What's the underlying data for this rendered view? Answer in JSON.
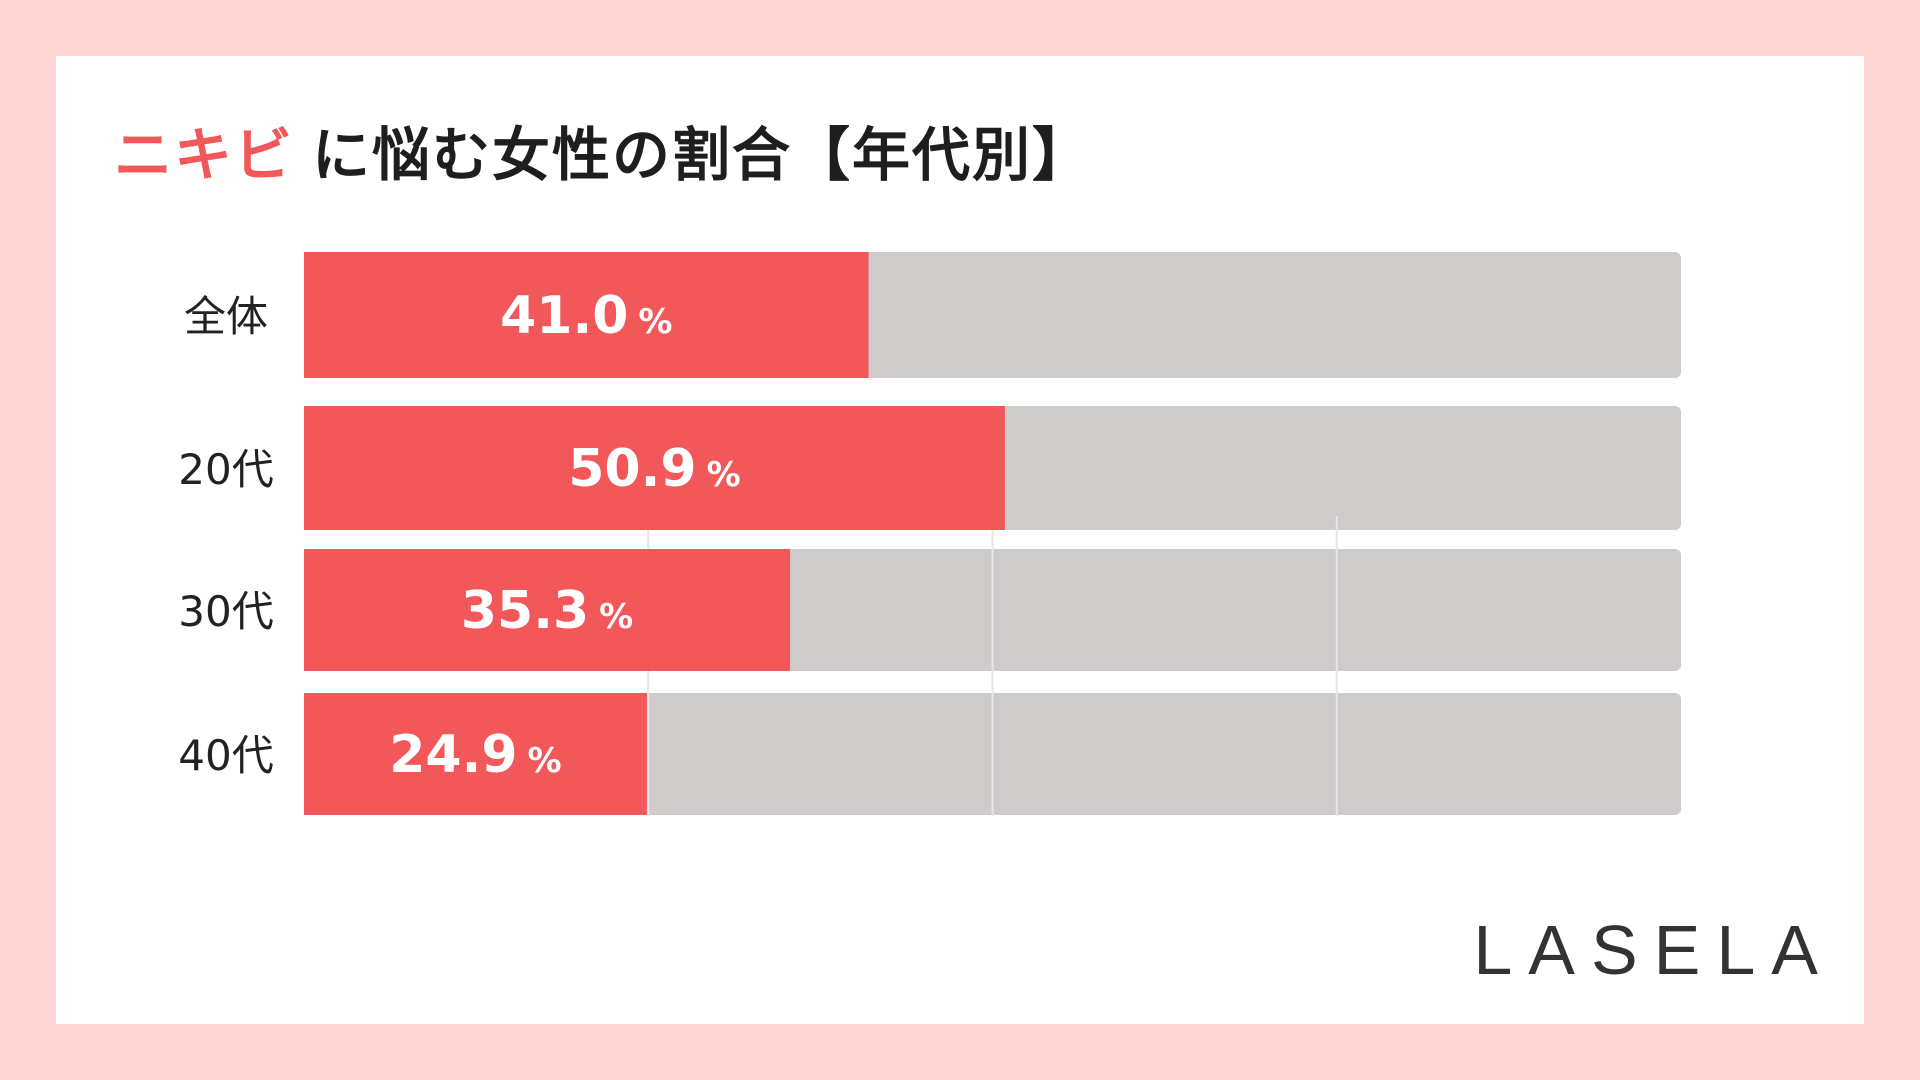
{
  "title": {
    "highlight": "ニキビ",
    "rest": "に悩む女性の割合【年代別】"
  },
  "brand": "LASELA",
  "colors": {
    "background": "#ffd5d6",
    "bar_fill": "#f2575a",
    "bar_track": "#cfcbca",
    "highlight": "#f2575a"
  },
  "chart_data": {
    "type": "bar",
    "orientation": "horizontal",
    "stacked_to_100": true,
    "categories": [
      "全体",
      "20代",
      "30代",
      "40代"
    ],
    "values": [
      41.0,
      50.9,
      35.3,
      24.9
    ],
    "value_labels": [
      "41.0",
      "50.9",
      "35.3",
      "24.9"
    ],
    "unit": "%",
    "xlim": [
      0,
      100
    ],
    "grid": true
  }
}
